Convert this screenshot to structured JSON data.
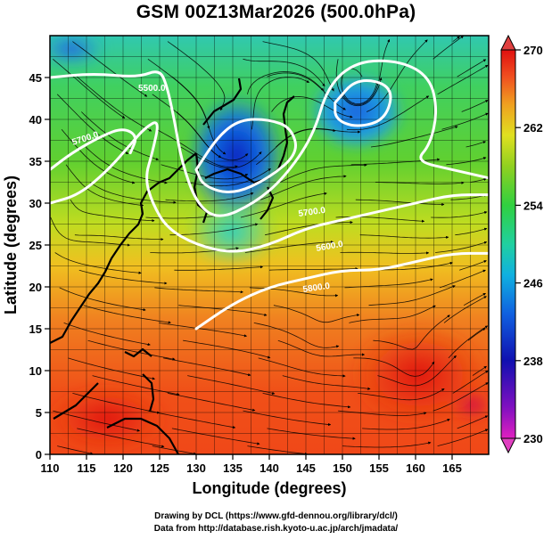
{
  "title": "GSM 00Z13Mar2026 (500.0hPa)",
  "x_axis": {
    "label": "Longitude (degrees)",
    "ticks": [
      "110",
      "115",
      "120",
      "125",
      "130",
      "135",
      "140",
      "145",
      "150",
      "155",
      "160",
      "165"
    ],
    "range": [
      110,
      170
    ]
  },
  "y_axis": {
    "label": "Latitude  (degrees)",
    "ticks": [
      "0",
      "5",
      "10",
      "15",
      "20",
      "25",
      "30",
      "35",
      "40",
      "45"
    ],
    "range": [
      0,
      50
    ]
  },
  "colorbar": {
    "ticks": [
      "230",
      "238",
      "246",
      "254",
      "262",
      "270"
    ],
    "range": [
      230,
      270
    ],
    "colors": [
      "#e020c0",
      "#8010c0",
      "#1010b0",
      "#1060e0",
      "#10b0e0",
      "#20d0a0",
      "#30d040",
      "#90d020",
      "#e0e020",
      "#f0a020",
      "#f05020",
      "#e01010"
    ]
  },
  "contours": {
    "labels": [
      "5700.0",
      "5500.0",
      "5700.0",
      "5800.0",
      "5600.0"
    ],
    "lines": [
      {
        "name": "5400",
        "points": [
          [
            130,
            34
          ],
          [
            133,
            38
          ],
          [
            136,
            40
          ],
          [
            140,
            40
          ],
          [
            143,
            39
          ],
          [
            144,
            36
          ],
          [
            140,
            33
          ],
          [
            135,
            31
          ],
          [
            131,
            32
          ],
          [
            130,
            34
          ]
        ]
      },
      {
        "name": "5400b",
        "points": [
          [
            149,
            42
          ],
          [
            152,
            45
          ],
          [
            157,
            44
          ],
          [
            156,
            40
          ],
          [
            152,
            39
          ],
          [
            149,
            40
          ],
          [
            149,
            42
          ]
        ]
      },
      {
        "name": "5500",
        "points": [
          [
            110,
            45
          ],
          [
            116,
            45.5
          ],
          [
            122,
            45
          ],
          [
            125,
            46
          ],
          [
            126,
            44
          ],
          [
            127,
            40
          ],
          [
            128,
            35
          ],
          [
            130,
            30
          ],
          [
            133,
            28
          ],
          [
            138,
            30
          ],
          [
            142,
            33
          ],
          [
            146,
            38
          ],
          [
            148,
            44
          ],
          [
            152,
            47
          ],
          [
            158,
            47
          ],
          [
            162,
            45
          ],
          [
            163,
            41
          ],
          [
            162,
            37
          ],
          [
            160,
            35
          ],
          [
            165,
            34
          ],
          [
            170,
            33
          ]
        ]
      },
      {
        "name": "5600",
        "points": [
          [
            110,
            30
          ],
          [
            114,
            31
          ],
          [
            118,
            34
          ],
          [
            121,
            37
          ],
          [
            123,
            39
          ],
          [
            125,
            40
          ],
          [
            124,
            36
          ],
          [
            123,
            33
          ],
          [
            124,
            30
          ],
          [
            126,
            27
          ],
          [
            130,
            25
          ],
          [
            135,
            24
          ],
          [
            140,
            25
          ],
          [
            145,
            27
          ],
          [
            150,
            28
          ],
          [
            155,
            29
          ],
          [
            160,
            30
          ],
          [
            165,
            31
          ],
          [
            170,
            31
          ]
        ]
      },
      {
        "name": "5700",
        "points": [
          [
            110,
            34
          ],
          [
            113,
            36
          ],
          [
            117,
            38
          ],
          [
            120,
            39
          ],
          [
            122,
            38
          ],
          [
            121,
            36
          ]
        ]
      },
      {
        "name": "5800",
        "points": [
          [
            130,
            15
          ],
          [
            135,
            18
          ],
          [
            140,
            20
          ],
          [
            145,
            21
          ],
          [
            150,
            22
          ],
          [
            155,
            22
          ],
          [
            160,
            23
          ],
          [
            165,
            24
          ],
          [
            170,
            24
          ]
        ]
      }
    ]
  },
  "credits": {
    "line1": "Drawing by DCL (https://www.gfd-dennou.org/library/dcl/)",
    "line2": "Data from http://database.rish.kyoto-u.ac.jp/arch/jmadata/"
  }
}
